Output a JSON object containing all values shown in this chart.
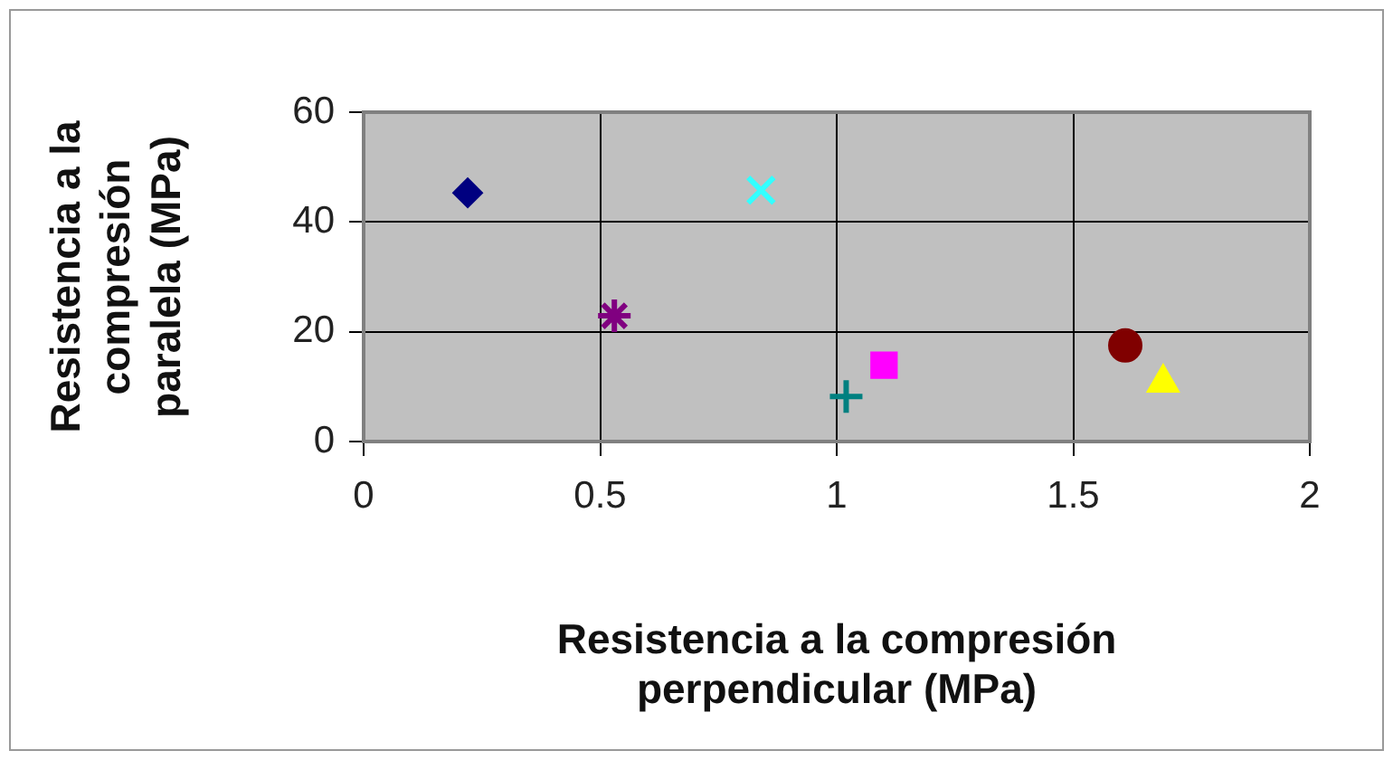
{
  "chart_data": {
    "type": "scatter",
    "xlabel": "Resistencia a la compresión perpendicular (MPa)",
    "ylabel": "Resistencia a la compresión paralela (MPa)",
    "xlim": [
      0,
      2
    ],
    "xticks": [
      0,
      0.5,
      1,
      1.5,
      2
    ],
    "ylim": [
      0,
      60
    ],
    "yticks": [
      0,
      20,
      40,
      60
    ],
    "grid": true,
    "legend": false,
    "series": [
      {
        "color": "#000080",
        "marker": "diamond",
        "x": [
          0.22
        ],
        "values": [
          45.3
        ]
      },
      {
        "color": "#33ffff",
        "marker": "x",
        "x": [
          0.84
        ],
        "values": [
          45.8
        ]
      },
      {
        "color": "#800080",
        "x": [
          0.53
        ],
        "values": [
          22.9
        ]
      },
      {
        "color": "#008080",
        "marker": "cross",
        "x": [
          1.02
        ],
        "values": [
          8.2
        ]
      },
      {
        "color": "#ff00ff",
        "marker": "square",
        "x": [
          1.1
        ],
        "values": [
          13.9
        ]
      },
      {
        "color": "#800000",
        "marker": "circle",
        "x": [
          1.61
        ],
        "values": [
          17.5
        ]
      },
      {
        "color": "#ffff00",
        "marker": "triangle",
        "x": [
          1.69
        ],
        "values": [
          10.7
        ]
      }
    ]
  }
}
